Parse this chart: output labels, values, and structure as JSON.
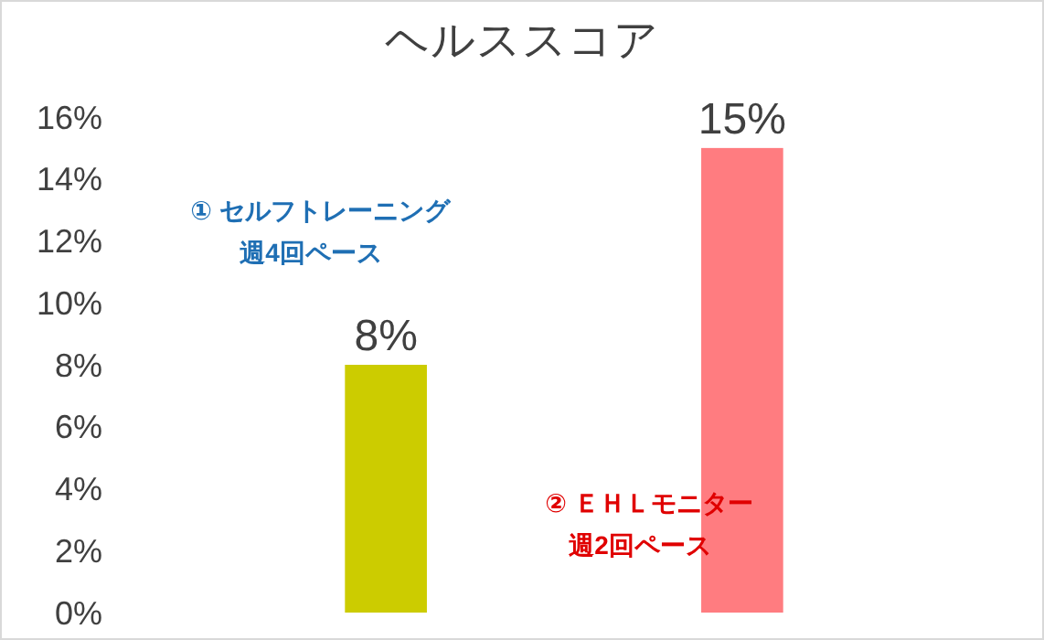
{
  "chart_data": {
    "type": "bar",
    "title": "ヘルススコア",
    "categories": [
      null,
      null
    ],
    "values": [
      8,
      15
    ],
    "colors": [
      "#cccc00",
      "#ff7c80"
    ],
    "value_labels": [
      "8%",
      "15%"
    ],
    "ylim": [
      0,
      16
    ],
    "yticks": [
      {
        "value": 0,
        "label": "0%"
      },
      {
        "value": 2,
        "label": "2%"
      },
      {
        "value": 4,
        "label": "4%"
      },
      {
        "value": 6,
        "label": "6%"
      },
      {
        "value": 8,
        "label": "8%"
      },
      {
        "value": 10,
        "label": "10%"
      },
      {
        "value": 12,
        "label": "12%"
      },
      {
        "value": 14,
        "label": "14%"
      },
      {
        "value": 16,
        "label": "16%"
      }
    ],
    "annotations": [
      "① セルフトレーニング",
      "週4回ペース",
      "② ＥＨＬモニター",
      "週2回ペース"
    ],
    "grid": false
  }
}
